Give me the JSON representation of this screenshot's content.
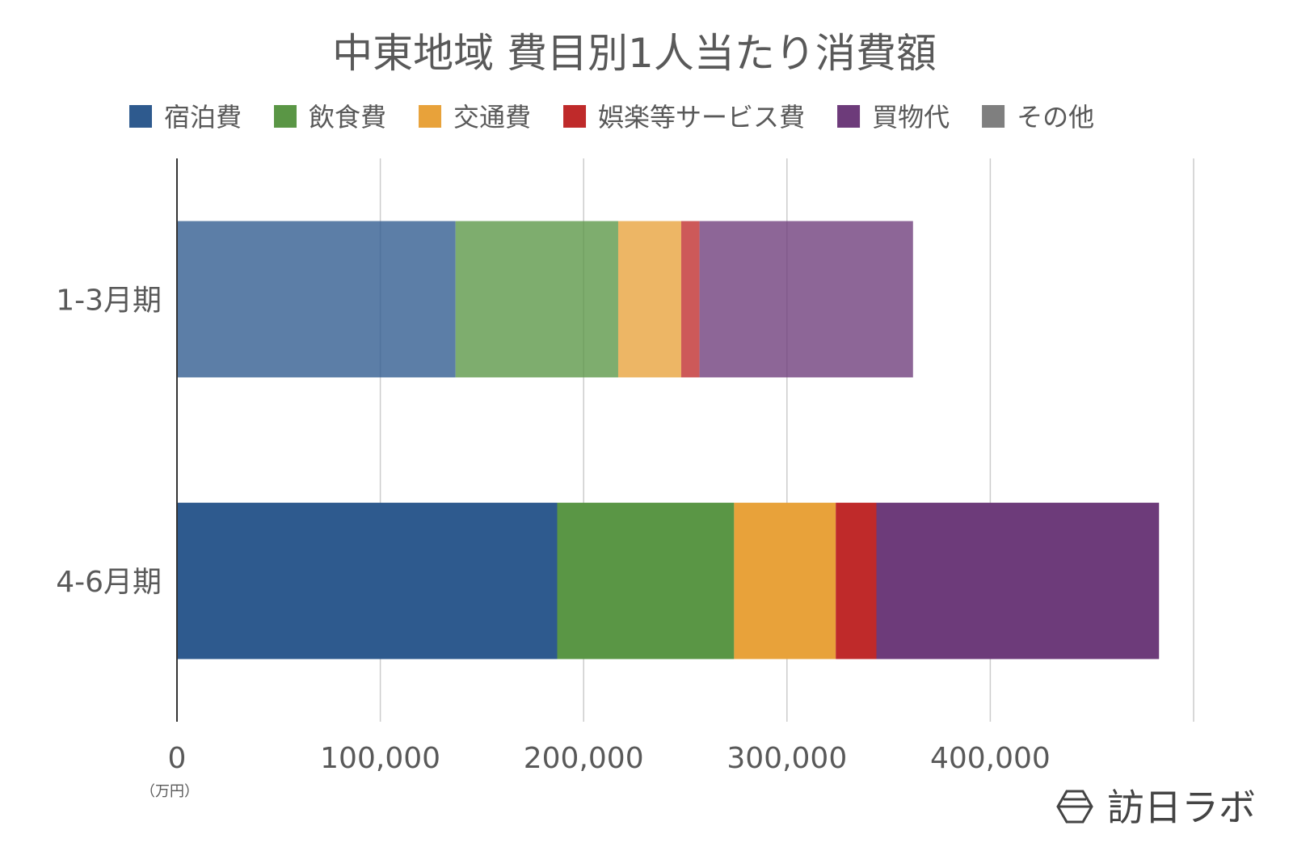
{
  "chart_data": {
    "type": "bar",
    "orientation": "horizontal",
    "stacked": true,
    "title": "中東地域 費目別1人当たり消費額",
    "categories": [
      "1-3月期",
      "4-6月期"
    ],
    "series": [
      {
        "name": "宿泊費",
        "color": "#2e5a8e",
        "values": [
          137000,
          187000
        ]
      },
      {
        "name": "飲食費",
        "color": "#5a9645",
        "values": [
          80000,
          87000
        ]
      },
      {
        "name": "交通費",
        "color": "#e8a23a",
        "values": [
          31000,
          50000
        ]
      },
      {
        "name": "娯楽等サービス費",
        "color": "#bf2a2a",
        "values": [
          9000,
          20000
        ]
      },
      {
        "name": "買物代",
        "color": "#6d3b7a",
        "values": [
          105000,
          139000
        ]
      },
      {
        "name": "その他",
        "color": "#7f7f7f",
        "values": [
          0,
          0
        ]
      }
    ],
    "highlight_category": "4-6月期",
    "xlim": [
      0,
      500000
    ],
    "xticks": [
      0,
      100000,
      200000,
      300000,
      400000,
      500000
    ],
    "xtick_labels": [
      "0",
      "100,000",
      "200,000",
      "300,000",
      "400,000",
      ""
    ],
    "unit_label": "（万円）",
    "grid": true,
    "legend_position": "top"
  },
  "logo": {
    "text": "訪日ラボ",
    "icon": "hexagon-logo-icon"
  }
}
